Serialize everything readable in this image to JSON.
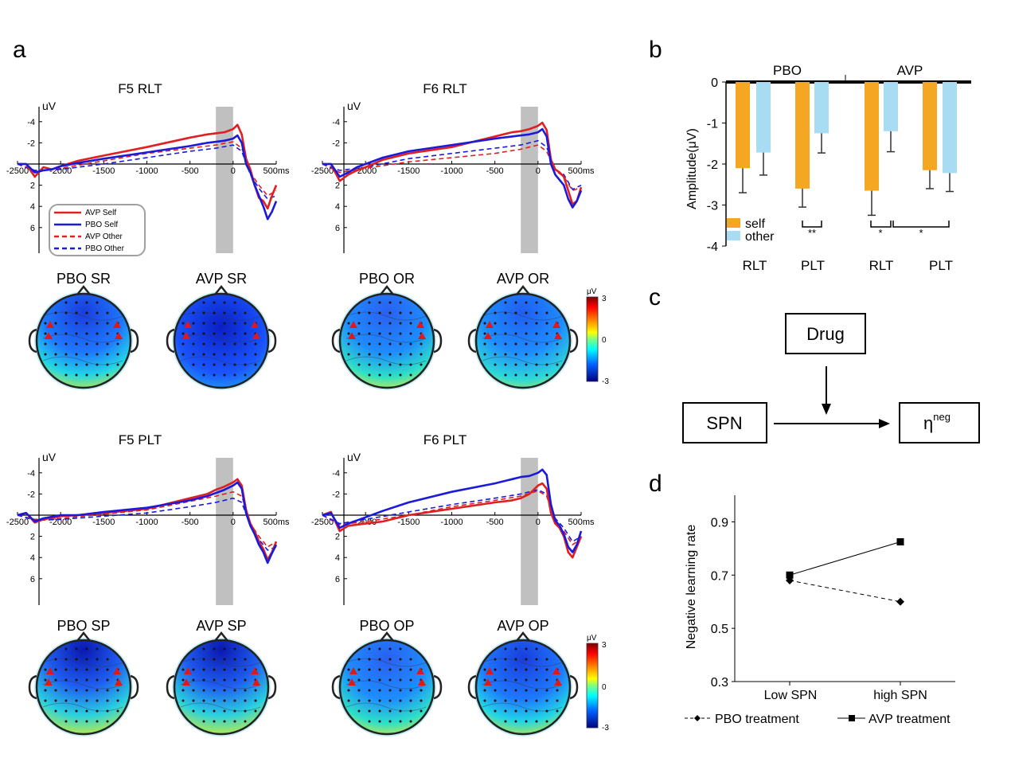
{
  "panel_labels": {
    "a": "a",
    "b": "b",
    "c": "c",
    "d": "d"
  },
  "erp_common": {
    "unit": "uV",
    "x_ticks": [
      "-2500",
      "-2000",
      "-1500",
      "-1000",
      "-500",
      "0",
      "500ms"
    ],
    "y_ticks": [
      "-4",
      "-2",
      "2",
      "4",
      "6"
    ],
    "xlim": [
      -2500,
      500
    ],
    "ylim": [
      -5,
      8
    ],
    "shade_window": [
      -200,
      0
    ],
    "legend": [
      "AVP Self",
      "PBO Self",
      "AVP Other",
      "PBO Other"
    ],
    "colors": {
      "avp": "#e02020",
      "pbo": "#1a1adb",
      "shade": "#c0c0c0"
    }
  },
  "colorbar": {
    "max": "3",
    "mid": "0",
    "min": "-3",
    "unit": "μV"
  },
  "topo_panels": [
    {
      "label": "PBO SR"
    },
    {
      "label": "AVP SR"
    },
    {
      "label": "PBO OR"
    },
    {
      "label": "AVP OR"
    },
    {
      "label": "PBO SP"
    },
    {
      "label": "AVP SP"
    },
    {
      "label": "PBO OP"
    },
    {
      "label": "AVP OP"
    }
  ],
  "mediation": {
    "drug": "Drug",
    "spn": "SPN",
    "eta": "η",
    "eta_sup": "neg"
  },
  "chart_data": [
    {
      "type": "line",
      "title": "F5 RLT",
      "xlabel": "ms",
      "ylabel": "uV",
      "series": [
        {
          "name": "AVP Self",
          "x": [
            -2500,
            -2400,
            -2300,
            -2200,
            -2100,
            -2000,
            -1800,
            -1500,
            -1000,
            -500,
            -300,
            -200,
            -100,
            0,
            50,
            100,
            150,
            200,
            250,
            300,
            350,
            400,
            450,
            500
          ],
          "values": [
            0,
            0,
            1.2,
            0.3,
            0.5,
            0.2,
            -0.3,
            -0.8,
            -1.6,
            -2.5,
            -2.8,
            -2.9,
            -3.0,
            -3.3,
            -3.7,
            -2.8,
            -0.5,
            0.5,
            2.0,
            3.2,
            3.5,
            4.2,
            3.0,
            2.0
          ]
        },
        {
          "name": "PBO Self",
          "x": [
            -2500,
            -2400,
            -2300,
            -2200,
            -2100,
            -2000,
            -1800,
            -1500,
            -1000,
            -500,
            -300,
            -200,
            -100,
            0,
            50,
            100,
            150,
            200,
            250,
            300,
            350,
            400,
            450,
            500
          ],
          "values": [
            0,
            0,
            0.8,
            0.6,
            0.5,
            0.2,
            -0.1,
            -0.5,
            -1.1,
            -1.7,
            -2.0,
            -2.1,
            -2.2,
            -2.4,
            -2.7,
            -2.0,
            0,
            0.8,
            2.0,
            3.0,
            4.0,
            5.2,
            4.5,
            3.5
          ]
        },
        {
          "name": "AVP Other",
          "x": [
            -2500,
            -2300,
            -2000,
            -1500,
            -1000,
            -500,
            -200,
            0,
            100,
            200,
            300,
            400,
            500
          ],
          "values": [
            0,
            0.7,
            0.4,
            -0.3,
            -1.0,
            -1.5,
            -1.8,
            -2.1,
            -1.5,
            0.8,
            2.0,
            3.0,
            2.5
          ]
        },
        {
          "name": "PBO Other",
          "x": [
            -2500,
            -2300,
            -2000,
            -1500,
            -1000,
            -500,
            -200,
            0,
            100,
            200,
            300,
            400,
            500
          ],
          "values": [
            0,
            0.6,
            0.5,
            0,
            -0.6,
            -1.2,
            -1.5,
            -1.8,
            -1.2,
            1.0,
            2.3,
            3.3,
            3.0
          ]
        }
      ]
    },
    {
      "type": "line",
      "title": "F6 RLT",
      "xlabel": "ms",
      "ylabel": "uV",
      "series": [
        {
          "name": "AVP Self",
          "x": [
            -2500,
            -2400,
            -2300,
            -2200,
            -2100,
            -2000,
            -1800,
            -1500,
            -1000,
            -500,
            -300,
            -200,
            -100,
            0,
            50,
            100,
            150,
            200,
            250,
            300,
            350,
            400,
            450,
            500
          ],
          "values": [
            0,
            0,
            1.6,
            1.0,
            0.6,
            0.3,
            -0.4,
            -1.0,
            -1.6,
            -2.6,
            -3.0,
            -3.1,
            -3.3,
            -3.6,
            -3.9,
            -3.2,
            -0.4,
            0.5,
            0.8,
            1.2,
            2.5,
            3.8,
            3.5,
            2.2
          ]
        },
        {
          "name": "PBO Self",
          "x": [
            -2500,
            -2400,
            -2300,
            -2200,
            -2100,
            -2000,
            -1800,
            -1500,
            -1000,
            -500,
            -300,
            -200,
            -100,
            0,
            50,
            100,
            150,
            200,
            250,
            300,
            350,
            400,
            450,
            500
          ],
          "values": [
            0,
            0,
            1.2,
            0.8,
            0.3,
            0,
            -0.6,
            -1.2,
            -1.8,
            -2.4,
            -2.6,
            -2.7,
            -2.8,
            -3.0,
            -3.3,
            -2.6,
            0,
            1.0,
            1.5,
            2.0,
            3.3,
            4.1,
            3.5,
            2.5
          ]
        },
        {
          "name": "AVP Other",
          "x": [
            -2500,
            -2300,
            -2000,
            -1500,
            -1000,
            -500,
            -200,
            0,
            100,
            200,
            300,
            400,
            500
          ],
          "values": [
            0,
            0.8,
            0.4,
            -0.2,
            -0.6,
            -1.0,
            -1.4,
            -1.8,
            -1.2,
            0.6,
            1.2,
            2.5,
            2.2
          ]
        },
        {
          "name": "PBO Other",
          "x": [
            -2500,
            -2300,
            -2000,
            -1500,
            -1000,
            -500,
            -200,
            0,
            100,
            200,
            300,
            400,
            500
          ],
          "values": [
            0,
            0.6,
            0.3,
            -0.5,
            -1.0,
            -1.5,
            -1.8,
            -2.2,
            -1.6,
            0.5,
            1.0,
            2.4,
            2.0
          ]
        }
      ]
    },
    {
      "type": "line",
      "title": "F5 PLT",
      "xlabel": "ms",
      "ylabel": "uV",
      "series": [
        {
          "name": "AVP Self",
          "x": [
            -2500,
            -2400,
            -2300,
            -2200,
            -2000,
            -1800,
            -1500,
            -1000,
            -500,
            -300,
            -200,
            -100,
            0,
            50,
            100,
            150,
            200,
            250,
            300,
            350,
            400,
            450,
            500
          ],
          "values": [
            0,
            -0.2,
            0.7,
            0.4,
            0.1,
            0,
            -0.2,
            -0.6,
            -1.6,
            -2.0,
            -2.4,
            -2.7,
            -3.1,
            -3.4,
            -2.8,
            -0.5,
            0.8,
            1.5,
            2.5,
            3.2,
            4.2,
            3.5,
            2.5
          ]
        },
        {
          "name": "PBO Self",
          "x": [
            -2500,
            -2400,
            -2300,
            -2200,
            -2000,
            -1800,
            -1500,
            -1000,
            -500,
            -300,
            -200,
            -100,
            0,
            50,
            100,
            150,
            200,
            250,
            300,
            350,
            400,
            450,
            500
          ],
          "values": [
            0,
            -0.2,
            0.6,
            0.3,
            0,
            0,
            -0.3,
            -0.7,
            -1.4,
            -1.8,
            -2.1,
            -2.4,
            -2.8,
            -3.1,
            -2.5,
            -0.2,
            1.0,
            1.8,
            2.8,
            3.5,
            4.5,
            3.6,
            2.8
          ]
        },
        {
          "name": "AVP Other",
          "x": [
            -2500,
            -2300,
            -2000,
            -1500,
            -1000,
            -500,
            -200,
            0,
            100,
            200,
            300,
            400,
            500
          ],
          "values": [
            0,
            0.4,
            0.3,
            -0.1,
            -0.5,
            -1.3,
            -1.8,
            -2.2,
            -1.8,
            0.8,
            2.0,
            3.0,
            2.5
          ]
        },
        {
          "name": "PBO Other",
          "x": [
            -2500,
            -2300,
            -2000,
            -1500,
            -1000,
            -500,
            -200,
            0,
            100,
            200,
            300,
            400,
            500
          ],
          "values": [
            0,
            0.5,
            0.4,
            0.1,
            -0.2,
            -0.8,
            -1.2,
            -1.6,
            -1.2,
            1.0,
            2.3,
            3.3,
            3.0
          ]
        }
      ]
    },
    {
      "type": "line",
      "title": "F6 PLT",
      "xlabel": "ms",
      "ylabel": "uV",
      "series": [
        {
          "name": "AVP Self",
          "x": [
            -2500,
            -2400,
            -2300,
            -2200,
            -2000,
            -1800,
            -1500,
            -1000,
            -500,
            -300,
            -200,
            -100,
            0,
            50,
            100,
            150,
            200,
            250,
            300,
            350,
            400,
            450,
            500
          ],
          "values": [
            0,
            -0.3,
            1.5,
            1.0,
            0.8,
            0.6,
            0,
            -0.6,
            -1.2,
            -1.4,
            -1.6,
            -2.0,
            -2.8,
            -3.0,
            -2.5,
            -0.2,
            0.8,
            1.2,
            2.0,
            3.5,
            4.0,
            3.0,
            2.0
          ]
        },
        {
          "name": "PBO Self",
          "x": [
            -2500,
            -2400,
            -2300,
            -2200,
            -2000,
            -1800,
            -1500,
            -1000,
            -500,
            -300,
            -200,
            -100,
            0,
            50,
            100,
            150,
            200,
            250,
            300,
            350,
            400,
            450,
            500
          ],
          "values": [
            0,
            -0.2,
            1.2,
            0.8,
            0.2,
            -0.4,
            -1.2,
            -2.2,
            -3.0,
            -3.4,
            -3.6,
            -3.7,
            -4.0,
            -4.3,
            -3.8,
            -1.0,
            0.5,
            1.0,
            1.8,
            3.0,
            3.5,
            2.8,
            1.5
          ]
        },
        {
          "name": "AVP Other",
          "x": [
            -2500,
            -2300,
            -2000,
            -1500,
            -1000,
            -500,
            -200,
            0,
            100,
            200,
            300,
            400,
            500
          ],
          "values": [
            0,
            0.9,
            0.6,
            0,
            -0.8,
            -1.4,
            -1.8,
            -2.3,
            -1.8,
            0.5,
            1.5,
            2.8,
            2.2
          ]
        },
        {
          "name": "PBO Other",
          "x": [
            -2500,
            -2300,
            -2000,
            -1500,
            -1000,
            -500,
            -200,
            0,
            100,
            200,
            300,
            400,
            500
          ],
          "values": [
            0,
            0.8,
            0.4,
            -0.3,
            -1.0,
            -1.6,
            -2.0,
            -2.4,
            -2.0,
            0.3,
            1.2,
            2.5,
            2.0
          ]
        }
      ]
    },
    {
      "type": "bar",
      "title": "",
      "ylabel": "Amplitude(μV)",
      "ylim": [
        -4,
        0
      ],
      "y_ticks": [
        "0",
        "-1",
        "-2",
        "-3",
        "-4"
      ],
      "groups": [
        "PBO",
        "AVP"
      ],
      "categories": [
        "RLT",
        "PLT",
        "RLT",
        "PLT"
      ],
      "series": [
        {
          "name": "self",
          "color": "#f5a623",
          "values": [
            -2.1,
            -2.6,
            -2.65,
            -2.15
          ],
          "errors": [
            0.6,
            0.45,
            0.6,
            0.45
          ]
        },
        {
          "name": "other",
          "color": "#a8dcf3",
          "values": [
            -1.72,
            -1.25,
            -1.2,
            -2.22
          ],
          "errors": [
            0.55,
            0.48,
            0.5,
            0.45
          ]
        }
      ],
      "significance": [
        {
          "label": "**",
          "between": [
            "PBO PLT self",
            "PBO PLT other"
          ]
        },
        {
          "label": "*",
          "between": [
            "AVP RLT self",
            "AVP RLT other"
          ]
        },
        {
          "label": "*",
          "between": [
            "AVP RLT other",
            "AVP PLT other"
          ]
        }
      ]
    },
    {
      "type": "line",
      "title": "",
      "ylabel": "Negative learning rate",
      "categories": [
        "Low SPN",
        "high SPN"
      ],
      "y_ticks": [
        "0.9",
        "0.7",
        "0.5",
        "0.3"
      ],
      "ylim": [
        0.3,
        1.0
      ],
      "series": [
        {
          "name": "PBO treatment",
          "values": [
            0.68,
            0.6
          ],
          "style": "dashed",
          "marker": "diamond"
        },
        {
          "name": "AVP treatment",
          "values": [
            0.7,
            0.825
          ],
          "style": "solid",
          "marker": "square"
        }
      ]
    }
  ]
}
